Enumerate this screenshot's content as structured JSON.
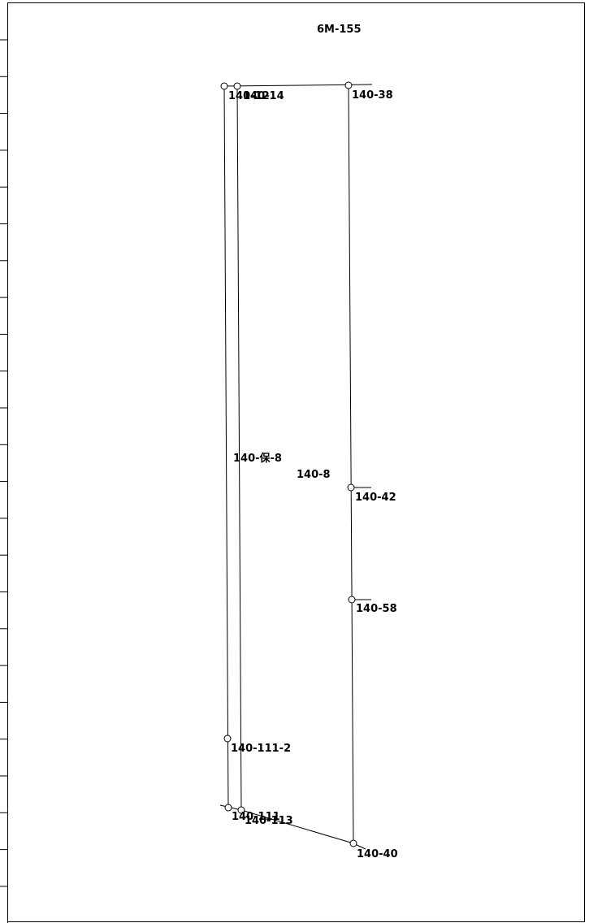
{
  "sheet_title": "6M-155",
  "parcels": {
    "main": "140-8",
    "strip": "140-保-8"
  },
  "points": {
    "p_140_12_14": "140-12 / 140-14",
    "p_140_38": "140-38",
    "p_140_42": "140-42",
    "p_140_58": "140-58",
    "p_140_111_2": "140-111-2",
    "p_140_111": "140-111",
    "p_140_113": "140-113",
    "p_140_40": "140-40"
  },
  "point_labels": {
    "l_140_12": "140-12",
    "l_140_14": "140-14",
    "l_140_38": "140-38",
    "l_140_42": "140-42",
    "l_140_58": "140-58",
    "l_140_111_2": "140-111-2",
    "l_140_111": "140-111",
    "l_140_113": "140-113",
    "l_140_40": "140-40"
  }
}
